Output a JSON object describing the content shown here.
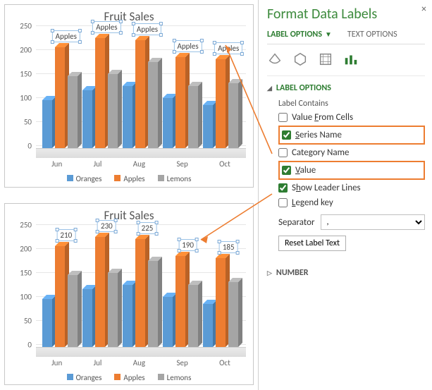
{
  "pane": {
    "title": "Format Data Labels",
    "tabs": {
      "label_options": "LABEL OPTIONS",
      "text_options": "TEXT OPTIONS"
    },
    "section_label_options": "LABEL OPTIONS",
    "label_contains": "Label Contains",
    "checks": {
      "value_from_cells": "Value From Cells",
      "series_name": "Series Name",
      "category_name": "Category Name",
      "value": "Value",
      "show_leader": "Show Leader Lines",
      "legend_key": "Legend key"
    },
    "checked": {
      "series_name": true,
      "value": true,
      "show_leader": true
    },
    "highlighted": [
      "series_name",
      "value"
    ],
    "separator_label": "Separator",
    "separator_value": ",",
    "reset_label": "Reset Label Text",
    "section_number": "NUMBER"
  },
  "chart": {
    "title": "Fruit Sales",
    "categories": [
      "Jun",
      "Jul",
      "Aug",
      "Sep",
      "Oct"
    ],
    "series": [
      {
        "name": "Oranges",
        "color": "#5b9bd5",
        "values": [
          100,
          120,
          130,
          105,
          90
        ]
      },
      {
        "name": "Apples",
        "color": "#ed7d31",
        "values": [
          210,
          230,
          225,
          190,
          185
        ]
      },
      {
        "name": "Lemons",
        "color": "#a5a5a5",
        "values": [
          150,
          155,
          180,
          130,
          135
        ]
      }
    ],
    "ymin": 0,
    "ymax": 250,
    "ystep": 50,
    "top_data_labels": [
      "Apples",
      "Apples",
      "Apples",
      "Apples",
      "Apples"
    ],
    "bottom_data_labels": [
      "210",
      "230",
      "225",
      "190",
      "185"
    ],
    "grid_color": "#e6e6e6",
    "background": "#ffffff",
    "axis_fontsize": 11,
    "title_fontsize": 17
  }
}
